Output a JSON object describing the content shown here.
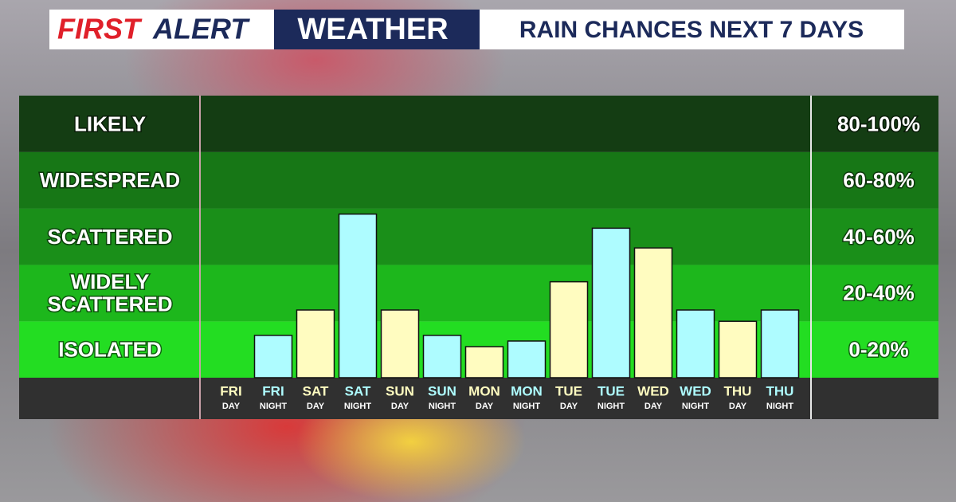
{
  "chart_data": {
    "type": "bar",
    "brand": [
      "FIRST",
      "ALERT"
    ],
    "title": "WEATHER",
    "subtitle": "RAIN CHANCES NEXT 7 DAYS",
    "categories": [
      {
        "day": "FRI",
        "part": "DAY"
      },
      {
        "day": "FRI",
        "part": "NIGHT"
      },
      {
        "day": "SAT",
        "part": "DAY"
      },
      {
        "day": "SAT",
        "part": "NIGHT"
      },
      {
        "day": "SUN",
        "part": "DAY"
      },
      {
        "day": "SUN",
        "part": "NIGHT"
      },
      {
        "day": "MON",
        "part": "DAY"
      },
      {
        "day": "MON",
        "part": "NIGHT"
      },
      {
        "day": "TUE",
        "part": "DAY"
      },
      {
        "day": "TUE",
        "part": "NIGHT"
      },
      {
        "day": "WED",
        "part": "DAY"
      },
      {
        "day": "WED",
        "part": "NIGHT"
      },
      {
        "day": "THU",
        "part": "DAY"
      },
      {
        "day": "THU",
        "part": "NIGHT"
      }
    ],
    "values": [
      0,
      15,
      24,
      58,
      24,
      15,
      11,
      13,
      34,
      53,
      46,
      24,
      20,
      24
    ],
    "colors": [
      "#fffcc0",
      "#aefcff",
      "#fffcc0",
      "#aefcff",
      "#fffcc0",
      "#aefcff",
      "#fffcc0",
      "#aefcff",
      "#fffcc0",
      "#aefcff",
      "#fffcc0",
      "#aefcff",
      "#fffcc0",
      "#aefcff"
    ],
    "ylim": [
      0,
      100
    ],
    "bands": [
      {
        "label": [
          "LIKELY"
        ],
        "range": "80-100%",
        "from": 80,
        "to": 100,
        "color": "#143d13"
      },
      {
        "label": [
          "WIDESPREAD"
        ],
        "range": "60-80%",
        "from": 60,
        "to": 80,
        "color": "#177716"
      },
      {
        "label": [
          "SCATTERED"
        ],
        "range": "40-60%",
        "from": 40,
        "to": 60,
        "color": "#1a8f19"
      },
      {
        "label": [
          "WIDELY",
          "SCATTERED"
        ],
        "range": "20-40%",
        "from": 20,
        "to": 40,
        "color": "#1db71c"
      },
      {
        "label": [
          "ISOLATED"
        ],
        "range": "0-20%",
        "from": 0,
        "to": 20,
        "color": "#23dd22"
      }
    ]
  }
}
